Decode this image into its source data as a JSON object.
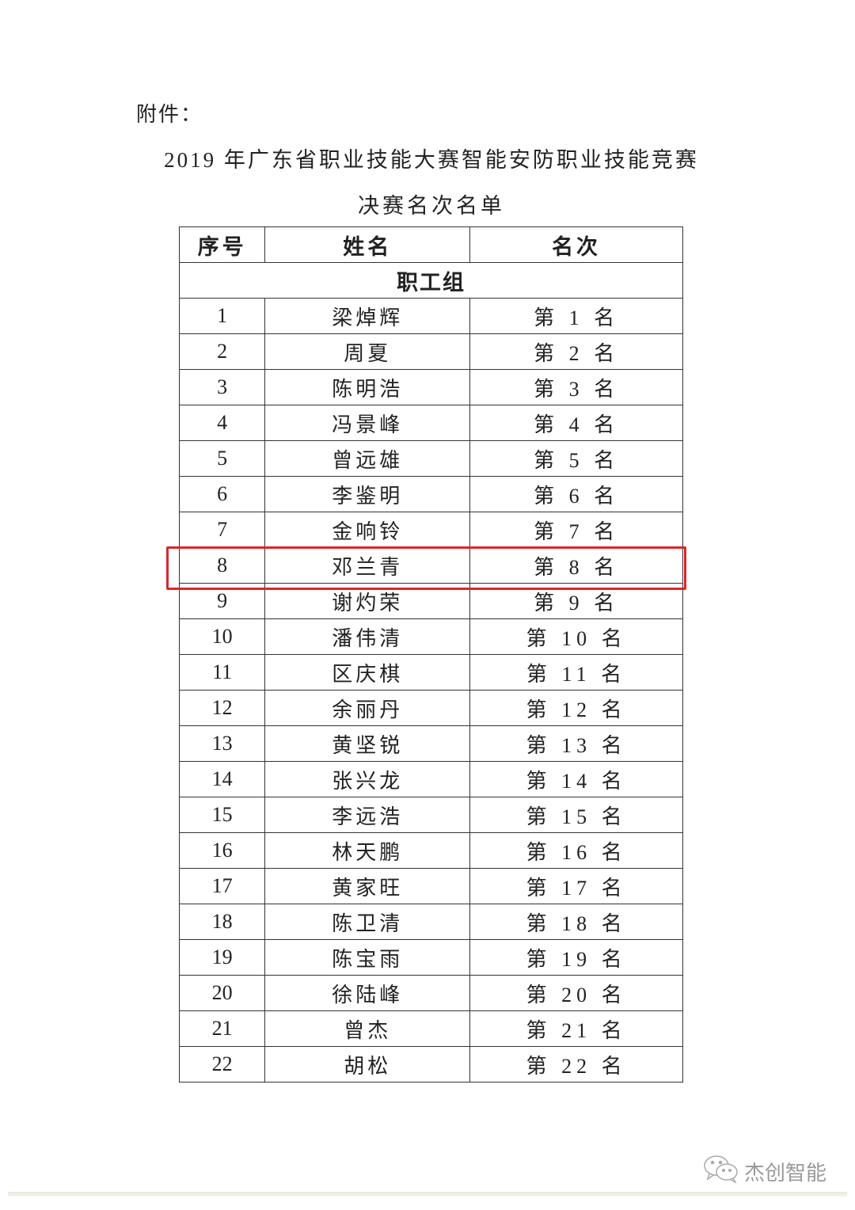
{
  "document": {
    "attachment_label": "附件：",
    "title_line1": "2019 年广东省职业技能大赛智能安防职业技能竞赛",
    "title_line2": "决赛名次名单"
  },
  "table": {
    "headers": [
      "序号",
      "姓名",
      "名次"
    ],
    "group": "职工组",
    "highlight_color": "#d42a2a",
    "highlighted_row": 8,
    "rows": [
      {
        "no": "1",
        "name": "梁焯辉",
        "rank": "第 1 名"
      },
      {
        "no": "2",
        "name": "周夏",
        "rank": "第 2 名"
      },
      {
        "no": "3",
        "name": "陈明浩",
        "rank": "第 3 名"
      },
      {
        "no": "4",
        "name": "冯景峰",
        "rank": "第 4 名"
      },
      {
        "no": "5",
        "name": "曾远雄",
        "rank": "第 5 名"
      },
      {
        "no": "6",
        "name": "李鉴明",
        "rank": "第 6 名"
      },
      {
        "no": "7",
        "name": "金响铃",
        "rank": "第 7 名"
      },
      {
        "no": "8",
        "name": "邓兰青",
        "rank": "第 8 名"
      },
      {
        "no": "9",
        "name": "谢灼荣",
        "rank": "第 9 名"
      },
      {
        "no": "10",
        "name": "潘伟清",
        "rank": "第 10 名"
      },
      {
        "no": "11",
        "name": "区庆棋",
        "rank": "第 11 名"
      },
      {
        "no": "12",
        "name": "余丽丹",
        "rank": "第 12 名"
      },
      {
        "no": "13",
        "name": "黄坚锐",
        "rank": "第 13 名"
      },
      {
        "no": "14",
        "name": "张兴龙",
        "rank": "第 14 名"
      },
      {
        "no": "15",
        "name": "李远浩",
        "rank": "第 15 名"
      },
      {
        "no": "16",
        "name": "林天鹏",
        "rank": "第 16 名"
      },
      {
        "no": "17",
        "name": "黄家旺",
        "rank": "第 17 名"
      },
      {
        "no": "18",
        "name": "陈卫清",
        "rank": "第 18 名"
      },
      {
        "no": "19",
        "name": "陈宝雨",
        "rank": "第 19 名"
      },
      {
        "no": "20",
        "name": "徐陆峰",
        "rank": "第 20 名"
      },
      {
        "no": "21",
        "name": "曾杰",
        "rank": "第 21 名"
      },
      {
        "no": "22",
        "name": "胡松",
        "rank": "第 22 名"
      }
    ]
  },
  "watermark": {
    "icon": "wechat-icon",
    "text": "杰创智能"
  }
}
